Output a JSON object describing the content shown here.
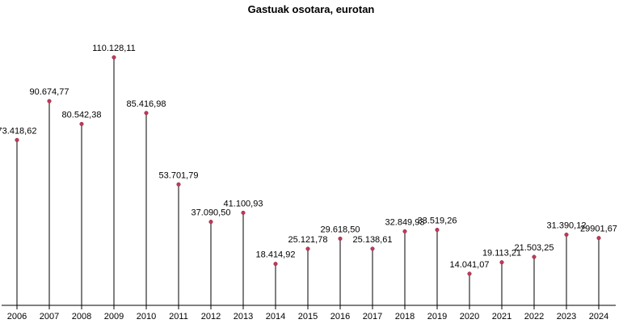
{
  "chart_data": {
    "type": "lollipop",
    "title": "Gastuak osotara, eurotan",
    "xlabel": "",
    "ylabel": "",
    "ylim": [
      0,
      125000
    ],
    "grid": false,
    "categories": [
      "2006",
      "2007",
      "2008",
      "2009",
      "2010",
      "2011",
      "2012",
      "2013",
      "2014",
      "2015",
      "2016",
      "2017",
      "2018",
      "2019",
      "2020",
      "2021",
      "2022",
      "2023",
      "2024"
    ],
    "values": [
      73418.62,
      90674.77,
      80542.38,
      110128.11,
      85416.98,
      53701.79,
      37090.5,
      41100.93,
      18414.92,
      25121.78,
      29618.5,
      25138.61,
      32849.93,
      33519.26,
      14041.07,
      19113.21,
      21503.25,
      31390.12,
      29901.67
    ],
    "value_labels": [
      "73.418,62",
      "90.674,77",
      "80.542,38",
      "110.128,11",
      "85.416,98",
      "53.701,79",
      "37.090,50",
      "41.100,93",
      "18.414,92",
      "25.121,78",
      "29.618,50",
      "25.138,61",
      "32.849,93",
      "33.519,26",
      "14.041,07",
      "19.113,21",
      "21.503,25",
      "31.390,12",
      "29901,67"
    ],
    "colors": {
      "marker": "#c0395a",
      "stem": "#000000"
    }
  }
}
